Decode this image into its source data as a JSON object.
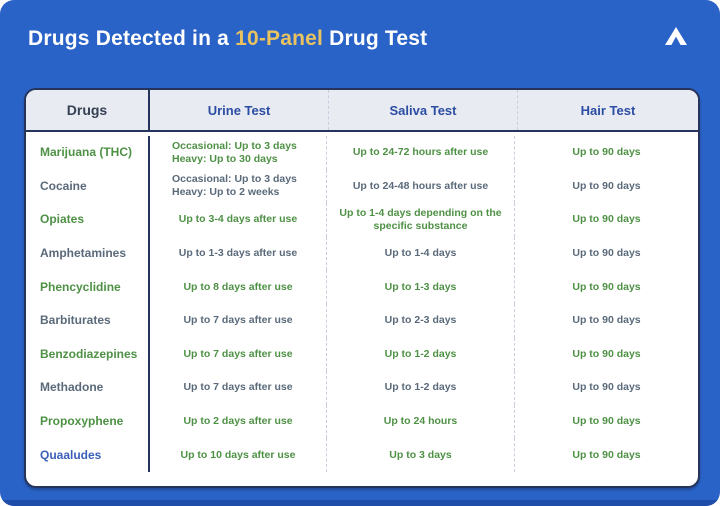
{
  "page": {
    "title_prefix": "Drugs Detected in a ",
    "title_highlight": "10-Panel",
    "title_suffix": " Drug Test",
    "logo_icon": "chevron-up-logo"
  },
  "colors": {
    "canvas_blue": "#2a63c7",
    "title_highlight_gold": "#e8c35f",
    "card_border_navy": "#26345b",
    "header_bg": "#e9ebf2",
    "header_drugs_text": "#333f52",
    "header_test_text": "#2b4da3",
    "row_green": "#4e9145",
    "row_slate": "#5a6a7a",
    "drug_link_blue": "#3c5fba"
  },
  "chart_data": {
    "type": "table",
    "title": "Drugs Detected in a 10-Panel Drug Test",
    "columns": [
      "Drugs",
      "Urine Test",
      "Saliva Test",
      "Hair Test"
    ],
    "rows": [
      [
        "Marijuana (THC)",
        "Occasional: Up to 3 days; Heavy: Up to 30 days",
        "Up to 24-72 hours after use",
        "Up to 90 days"
      ],
      [
        "Cocaine",
        "Occasional: Up to 3 days; Heavy: Up to 2 weeks",
        "Up to 24-48 hours after use",
        "Up to 90 days"
      ],
      [
        "Opiates",
        "Up to 3-4 days after use",
        "Up to 1-4 days depending on the specific substance",
        "Up to 90 days"
      ],
      [
        "Amphetamines",
        "Up to 1-3 days after use",
        "Up to 1-4 days",
        "Up to 90 days"
      ],
      [
        "Phencyclidine",
        "Up to 8 days after use",
        "Up to 1-3 days",
        "Up to 90 days"
      ],
      [
        "Barbiturates",
        "Up to 7 days after use",
        "Up to 2-3 days",
        "Up to 90 days"
      ],
      [
        "Benzodiazepines",
        "Up to 7 days after use",
        "Up to 1-2 days",
        "Up to 90 days"
      ],
      [
        "Methadone",
        "Up to 7 days after use",
        "Up to 1-2 days",
        "Up to 90 days"
      ],
      [
        "Propoxyphene",
        "Up to 2 days after use",
        "Up to 24 hours",
        "Up to 90 days"
      ],
      [
        "Quaaludes",
        "Up to 10 days after use",
        "Up to 3 days",
        "Up to 90 days"
      ]
    ]
  },
  "table": {
    "headers": [
      "Drugs",
      "Urine Test",
      "Saliva Test",
      "Hair Test"
    ],
    "rows": [
      {
        "drug": "Marijuana (THC)",
        "tone": "green",
        "drug_tone": "green",
        "urine_lines": [
          {
            "b": "Occasional:",
            "t": " Up to 3 days"
          },
          {
            "b": "Heavy:",
            "t": " Up to 30 days"
          }
        ],
        "saliva": "Up to 24-72 hours after use",
        "hair": "Up to 90 days"
      },
      {
        "drug": "Cocaine",
        "tone": "slate",
        "drug_tone": "slate",
        "urine_lines": [
          {
            "b": "Occasional:",
            "t": " Up to 3 days"
          },
          {
            "b": "Heavy:",
            "t": " Up to 2 weeks"
          }
        ],
        "saliva": "Up to 24-48 hours after use",
        "hair": "Up to 90 days"
      },
      {
        "drug": "Opiates",
        "tone": "green",
        "drug_tone": "green",
        "urine": "Up to 3-4 days after use",
        "saliva": "Up to 1-4 days depending on the specific substance",
        "hair": "Up to 90 days"
      },
      {
        "drug": "Amphetamines",
        "tone": "slate",
        "drug_tone": "slate",
        "urine": "Up to 1-3 days after use",
        "saliva": "Up to 1-4 days",
        "hair": "Up to 90 days"
      },
      {
        "drug": "Phencyclidine",
        "tone": "green",
        "drug_tone": "green",
        "urine": "Up to 8 days after use",
        "saliva": "Up to 1-3 days",
        "hair": "Up to 90 days"
      },
      {
        "drug": "Barbiturates",
        "tone": "slate",
        "drug_tone": "slate",
        "urine": "Up to 7 days after use",
        "saliva": "Up to 2-3 days",
        "hair": "Up to 90 days"
      },
      {
        "drug": "Benzodiazepines",
        "tone": "green",
        "drug_tone": "green",
        "urine": "Up to 7 days after use",
        "saliva": "Up to 1-2 days",
        "hair": "Up to 90 days"
      },
      {
        "drug": "Methadone",
        "tone": "slate",
        "drug_tone": "slate",
        "urine": "Up to 7 days after use",
        "saliva": "Up to 1-2 days",
        "hair": "Up to 90 days"
      },
      {
        "drug": "Propoxyphene",
        "tone": "green",
        "drug_tone": "green",
        "urine": "Up to 2 days after use",
        "saliva": "Up to 24 hours",
        "hair": "Up to 90 days"
      },
      {
        "drug": "Quaaludes",
        "tone": "green",
        "drug_tone": "blue",
        "urine": "Up to 10 days after use",
        "saliva": "Up to 3 days",
        "hair": "Up to 90 days"
      }
    ]
  }
}
